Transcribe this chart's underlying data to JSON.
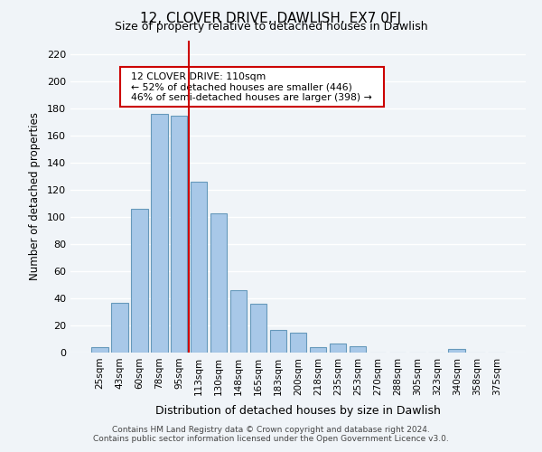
{
  "title": "12, CLOVER DRIVE, DAWLISH, EX7 0FJ",
  "subtitle": "Size of property relative to detached houses in Dawlish",
  "xlabel": "Distribution of detached houses by size in Dawlish",
  "ylabel": "Number of detached properties",
  "bar_color": "#a8c8e8",
  "bar_edge_color": "#6699bb",
  "background_color": "#f0f4f8",
  "grid_color": "white",
  "bin_labels": [
    "25sqm",
    "43sqm",
    "60sqm",
    "78sqm",
    "95sqm",
    "113sqm",
    "130sqm",
    "148sqm",
    "165sqm",
    "183sqm",
    "200sqm",
    "218sqm",
    "235sqm",
    "253sqm",
    "270sqm",
    "288sqm",
    "305sqm",
    "323sqm",
    "340sqm",
    "358sqm",
    "375sqm"
  ],
  "bar_heights": [
    4,
    37,
    106,
    176,
    175,
    126,
    103,
    46,
    36,
    17,
    15,
    4,
    7,
    5,
    0,
    0,
    0,
    0,
    3,
    0,
    0
  ],
  "vline_x": 5,
  "vline_color": "#cc0000",
  "annotation_title": "12 CLOVER DRIVE: 110sqm",
  "annotation_line1": "← 52% of detached houses are smaller (446)",
  "annotation_line2": "46% of semi-detached houses are larger (398) →",
  "annotation_box_color": "white",
  "annotation_box_edge": "#cc0000",
  "ylim": [
    0,
    230
  ],
  "yticks": [
    0,
    20,
    40,
    60,
    80,
    100,
    120,
    140,
    160,
    180,
    200,
    220
  ],
  "footer_line1": "Contains HM Land Registry data © Crown copyright and database right 2024.",
  "footer_line2": "Contains public sector information licensed under the Open Government Licence v3.0."
}
